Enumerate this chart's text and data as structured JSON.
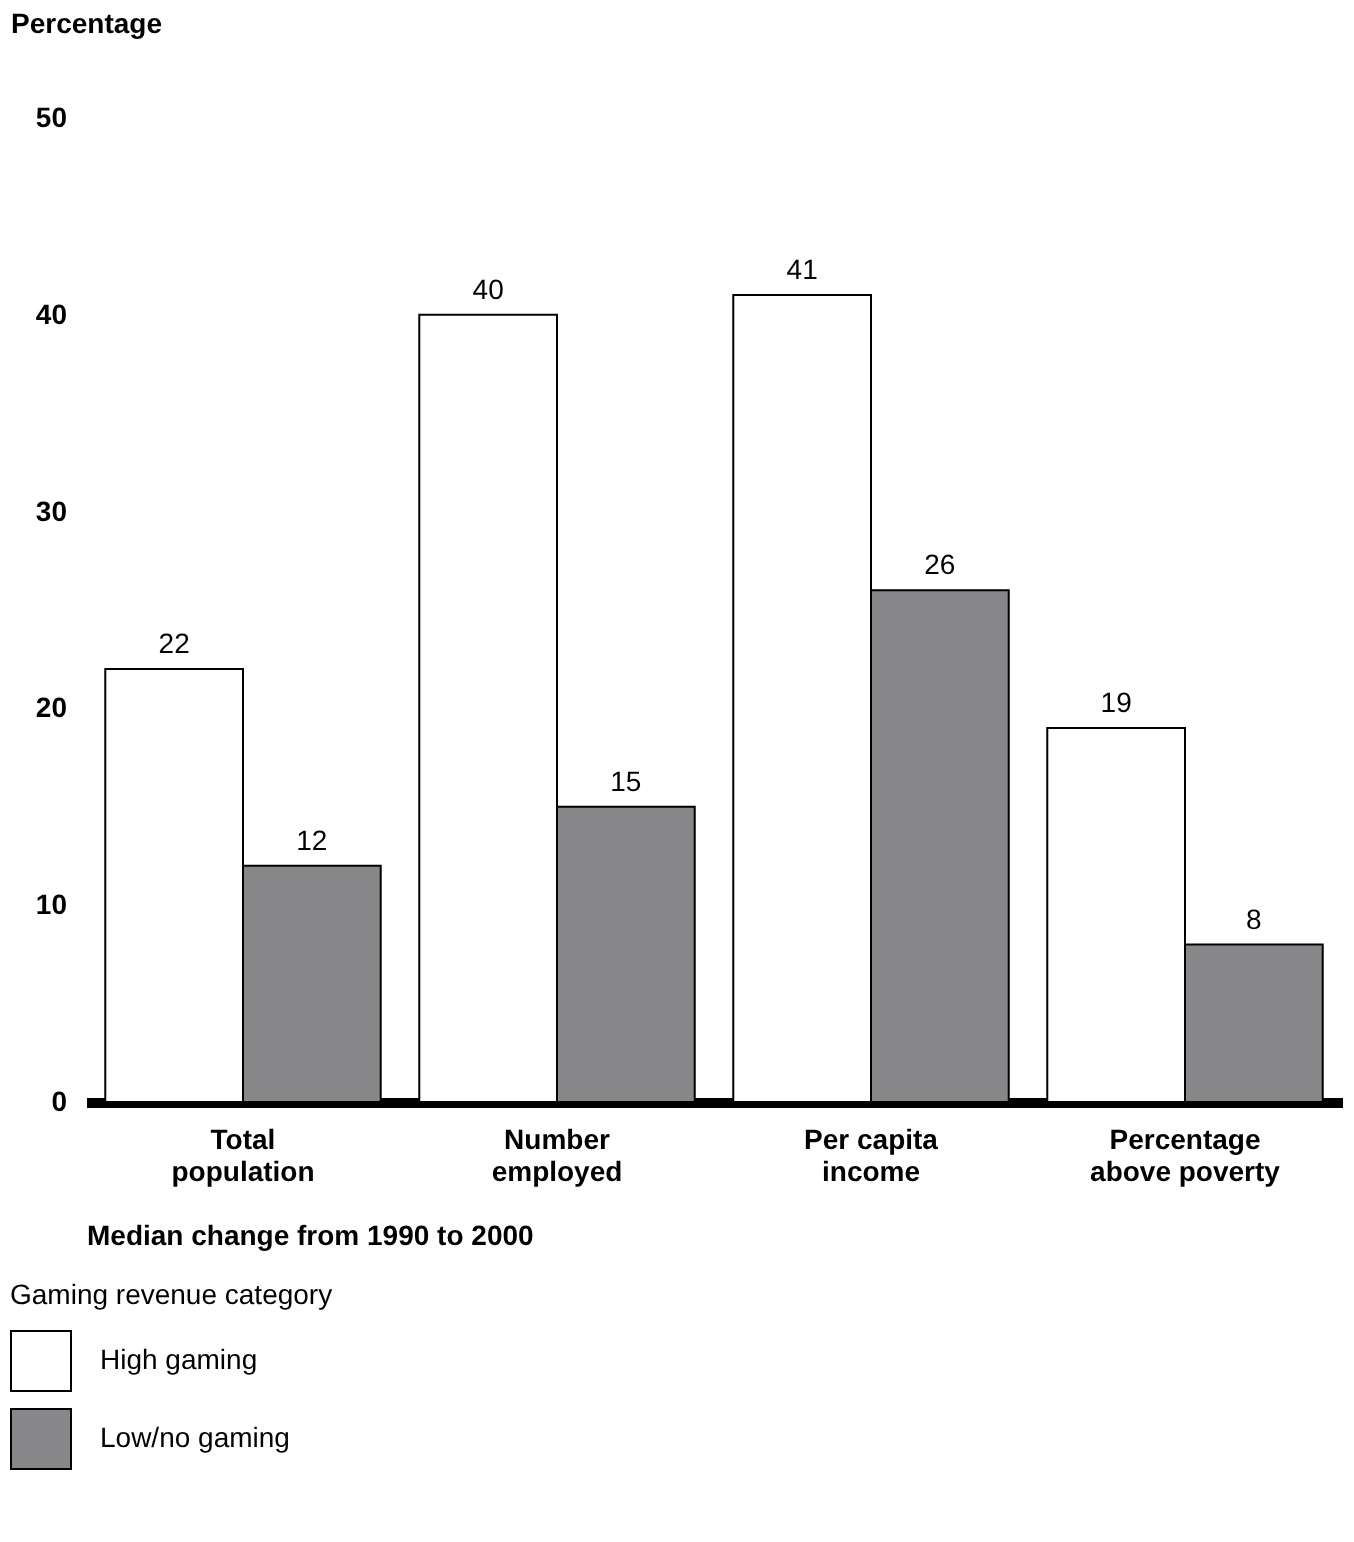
{
  "chart_data": {
    "type": "bar",
    "ylabel": "Percentage",
    "xlabel": "Median change from 1990 to 2000",
    "legend_title": "Gaming revenue category",
    "categories": [
      "Total population",
      "Number employed",
      "Per capita income",
      "Percentage above poverty"
    ],
    "series": [
      {
        "name": "High gaming",
        "color": "#ffffff",
        "values": [
          22,
          40,
          41,
          19
        ]
      },
      {
        "name": "Low/no gaming",
        "color": "#87878a",
        "values": [
          12,
          15,
          26,
          8
        ]
      }
    ],
    "ylim": [
      0,
      50
    ],
    "yticks": [
      0,
      10,
      20,
      30,
      40,
      50
    ],
    "grid": false,
    "legend": "bottom",
    "data_labels": true
  }
}
